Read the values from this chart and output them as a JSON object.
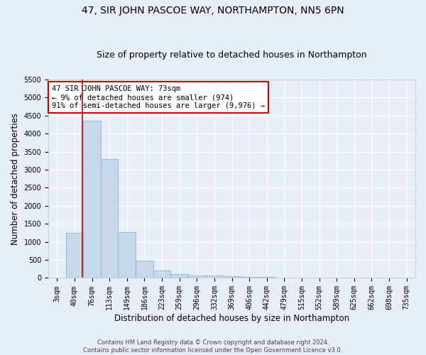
{
  "title": "47, SIR JOHN PASCOE WAY, NORTHAMPTON, NN5 6PN",
  "subtitle": "Size of property relative to detached houses in Northampton",
  "xlabel": "Distribution of detached houses by size in Northampton",
  "ylabel": "Number of detached properties",
  "categories": [
    "3sqm",
    "40sqm",
    "76sqm",
    "113sqm",
    "149sqm",
    "186sqm",
    "223sqm",
    "259sqm",
    "296sqm",
    "332sqm",
    "369sqm",
    "406sqm",
    "442sqm",
    "479sqm",
    "515sqm",
    "552sqm",
    "589sqm",
    "625sqm",
    "662sqm",
    "698sqm",
    "735sqm"
  ],
  "values": [
    0,
    1250,
    4350,
    3300,
    1270,
    480,
    200,
    100,
    70,
    60,
    50,
    30,
    20,
    0,
    0,
    0,
    0,
    0,
    0,
    0,
    0
  ],
  "bar_color": "#c5d8ec",
  "bar_edge_color": "#7aaacb",
  "annotation_text": "47 SIR JOHN PASCOE WAY: 73sqm\n← 9% of detached houses are smaller (974)\n91% of semi-detached houses are larger (9,976) →",
  "annotation_box_facecolor": "#ffffff",
  "annotation_box_edgecolor": "#cc0000",
  "vline_x_index": 1.45,
  "vline_color": "#cc0000",
  "ylim": [
    0,
    5500
  ],
  "yticks": [
    0,
    500,
    1000,
    1500,
    2000,
    2500,
    3000,
    3500,
    4000,
    4500,
    5000,
    5500
  ],
  "footnote": "Contains HM Land Registry data © Crown copyright and database right 2024.\nContains public sector information licensed under the Open Government Licence v3.0.",
  "bg_color": "#e8eef5",
  "plot_bg_color": "#e8eef5",
  "grid_color": "#ffffff",
  "title_fontsize": 10,
  "subtitle_fontsize": 9,
  "label_fontsize": 8.5,
  "tick_fontsize": 7,
  "annot_fontsize": 7.5
}
